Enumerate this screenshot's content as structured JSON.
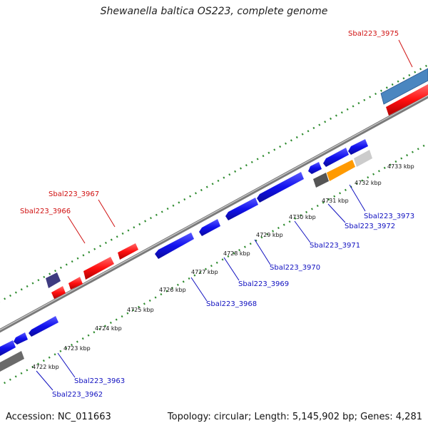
{
  "title": "Shewanella baltica OS223, complete genome",
  "footer": {
    "accession": "Accession: NC_011663",
    "summary": "Topology: circular; Length: 5,145,902 bp; Genes: 4,281"
  },
  "colors": {
    "backbone": "#8a8a8a",
    "ticks": "#2e8b2e",
    "forward_gene": "#ff1010",
    "reverse_gene": "#1010ee",
    "label_forward": "#d01010",
    "label_reverse": "#1010c0"
  },
  "scale_labels": [
    "4722 kbp",
    "4723 kbp",
    "4724 kbp",
    "4725 kbp",
    "4726 kbp",
    "4727 kbp",
    "4728 kbp",
    "4729 kbp",
    "4730 kbp",
    "4731 kbp",
    "4732 kbp",
    "4733 kbp"
  ],
  "gene_labels": [
    {
      "text": "Sbal223_3975",
      "strand": "forward"
    },
    {
      "text": "Sbal223_3967",
      "strand": "forward"
    },
    {
      "text": "Sbal223_3966",
      "strand": "forward"
    },
    {
      "text": "Sbal223_3973",
      "strand": "reverse"
    },
    {
      "text": "Sbal223_3972",
      "strand": "reverse"
    },
    {
      "text": "Sbal223_3971",
      "strand": "reverse"
    },
    {
      "text": "Sbal223_3970",
      "strand": "reverse"
    },
    {
      "text": "Sbal223_3969",
      "strand": "reverse"
    },
    {
      "text": "Sbal223_3968",
      "strand": "reverse"
    },
    {
      "text": "Sbal223_3963",
      "strand": "reverse"
    },
    {
      "text": "Sbal223_3962",
      "strand": "reverse"
    }
  ]
}
